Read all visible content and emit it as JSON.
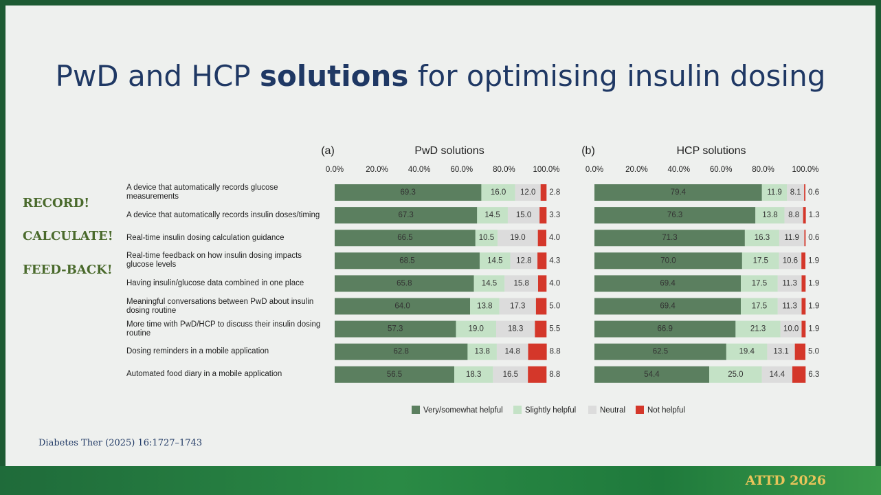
{
  "title": {
    "parts": [
      "PwD and HCP",
      "solutions",
      "for optimising insulin dosing"
    ]
  },
  "side_labels": [
    "RECORD!",
    "CALCULATE!",
    "FEED-BACK!"
  ],
  "citation": "Diabetes Ther (2025) 16:1727–1743",
  "footer": "ATTD 2026",
  "chart_data": [
    {
      "type": "bar",
      "orientation": "horizontal",
      "stacked": true,
      "panel": "(a)",
      "title": "PwD solutions",
      "categories": [
        "A device that automatically records glucose measurements",
        "A device that automatically records insulin doses/timing",
        "Real-time insulin dosing calculation guidance",
        "Real-time feedback on how insulin dosing impacts glucose levels",
        "Having insulin/glucose data combined in one place",
        "Meaningful conversations between PwD about insulin dosing routine",
        "More time with PwD/HCP to discuss their insulin dosing routine",
        "Dosing reminders in a mobile application",
        "Automated food diary in a mobile application"
      ],
      "xlim": [
        0,
        100
      ],
      "xticks": [
        {
          "value": 0,
          "label": "0.0%"
        },
        {
          "value": 20,
          "label": "20.0%"
        },
        {
          "value": 40,
          "label": "40.0%"
        },
        {
          "value": 60,
          "label": "60.0%"
        },
        {
          "value": 80,
          "label": "80.0%"
        },
        {
          "value": 100,
          "label": "100.0%"
        }
      ],
      "legend": "bottom",
      "series": [
        {
          "name": "Very/somewhat helpful",
          "color": "#5b7f5f",
          "values": [
            69.3,
            67.3,
            66.5,
            68.5,
            65.8,
            64.0,
            57.3,
            62.8,
            56.5
          ],
          "value_labels": [
            "69.3",
            "67.3",
            "66.5",
            "68.5",
            "65.8",
            "64.0",
            "57.3",
            "62.8",
            "56.5"
          ]
        },
        {
          "name": "Slightly helpful",
          "color": "#c4e2c6",
          "values": [
            16.0,
            14.5,
            10.5,
            14.5,
            14.5,
            13.8,
            19.0,
            13.8,
            18.3
          ],
          "value_labels": [
            "16.0",
            "14.5",
            "10.5",
            "14.5",
            "14.5",
            "13.8",
            "19.0",
            "13.8",
            "18.3"
          ]
        },
        {
          "name": "Neutral",
          "color": "#dcdcdc",
          "values": [
            12.0,
            15.0,
            19.0,
            12.8,
            15.8,
            17.3,
            18.3,
            14.8,
            16.5
          ],
          "value_labels": [
            "12.0",
            "15.0",
            "19.0",
            "12.8",
            "15.8",
            "17.3",
            "18.3",
            "14.8",
            "16.5"
          ]
        },
        {
          "name": "Not helpful",
          "color": "#d4372a",
          "values": [
            2.8,
            3.3,
            4.0,
            4.3,
            4.0,
            5.0,
            5.5,
            8.8,
            8.8
          ],
          "value_labels": [
            "2.8",
            "3.3",
            "4.0",
            "4.3",
            "4.0",
            "5.0",
            "5.5",
            "8.8",
            "8.8"
          ]
        }
      ]
    },
    {
      "type": "bar",
      "orientation": "horizontal",
      "stacked": true,
      "panel": "(b)",
      "title": "HCP solutions",
      "xlim": [
        0,
        100
      ],
      "xticks": [
        {
          "value": 0,
          "label": "0.0%"
        },
        {
          "value": 20,
          "label": "20.0%"
        },
        {
          "value": 40,
          "label": "40.0%"
        },
        {
          "value": 60,
          "label": "60.0%"
        },
        {
          "value": 80,
          "label": "80.0%"
        },
        {
          "value": 100,
          "label": "100.0%"
        }
      ],
      "series": [
        {
          "color": "#5b7f5f",
          "values": [
            79.4,
            76.3,
            71.3,
            70.0,
            69.4,
            69.4,
            66.9,
            62.5,
            54.4
          ],
          "value_labels": [
            "79.4",
            "76.3",
            "71.3",
            "70.0",
            "69.4",
            "69.4",
            "66.9",
            "62.5",
            "54.4"
          ]
        },
        {
          "color": "#c4e2c6",
          "values": [
            11.9,
            13.8,
            16.3,
            17.5,
            17.5,
            17.5,
            21.3,
            19.4,
            25.0
          ],
          "value_labels": [
            "11.9",
            "13.8",
            "16.3",
            "17.5",
            "17.5",
            "17.5",
            "21.3",
            "19.4",
            "25.0"
          ]
        },
        {
          "color": "#dcdcdc",
          "values": [
            8.1,
            8.8,
            11.9,
            10.6,
            11.3,
            11.3,
            10.0,
            13.1,
            14.4
          ],
          "value_labels": [
            "8.1",
            "8.8",
            "11.9",
            "10.6",
            "11.3",
            "11.3",
            "10.0",
            "13.1",
            "14.4"
          ]
        },
        {
          "color": "#d4372a",
          "values": [
            0.6,
            1.3,
            0.6,
            1.9,
            1.9,
            1.9,
            1.9,
            5.0,
            6.3
          ],
          "value_labels": [
            "0.6",
            "1.3",
            "0.6",
            "1.9",
            "1.9",
            "1.9",
            "1.9",
            "5.0",
            "6.3"
          ]
        }
      ]
    }
  ]
}
